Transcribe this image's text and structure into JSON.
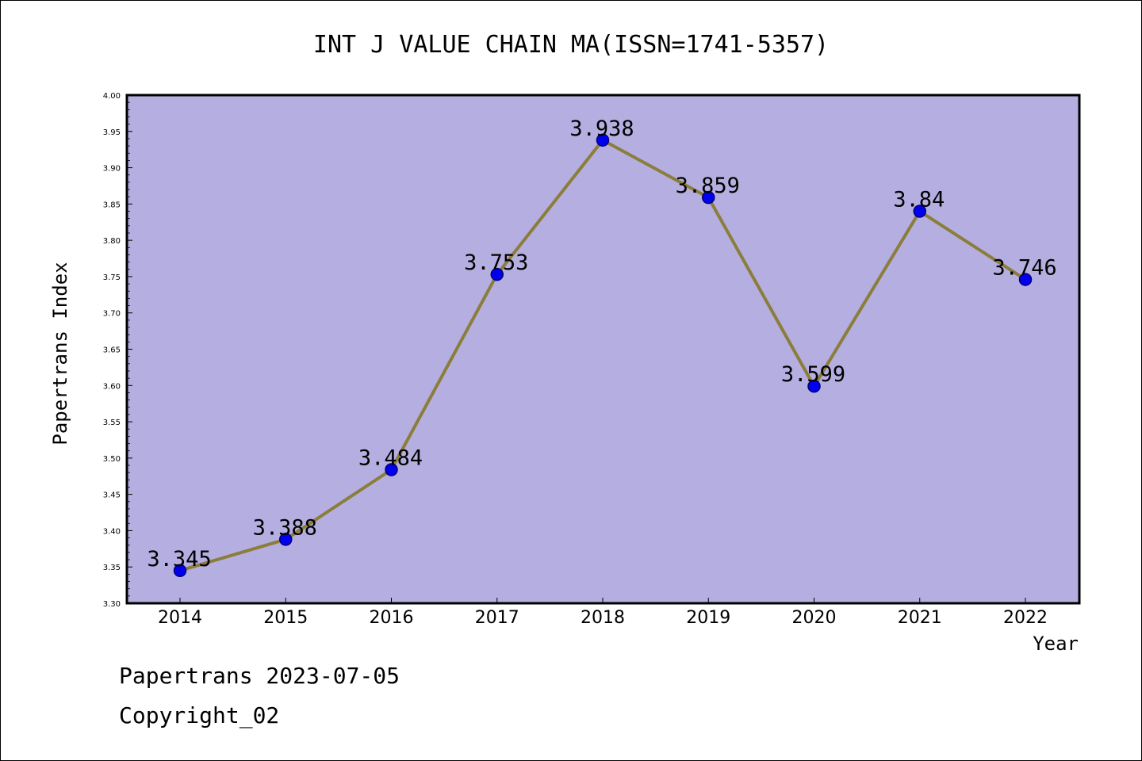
{
  "chart_data": {
    "type": "line",
    "title": "INT J VALUE CHAIN MA(ISSN=1741-5357)",
    "xlabel": "Year",
    "ylabel": "Papertrans Index",
    "categories": [
      "2014",
      "2015",
      "2016",
      "2017",
      "2018",
      "2019",
      "2020",
      "2021",
      "2022"
    ],
    "values": [
      3.345,
      3.388,
      3.484,
      3.753,
      3.938,
      3.859,
      3.599,
      3.84,
      3.746
    ],
    "data_labels": [
      "3.345",
      "3.388",
      "3.484",
      "3.753",
      "3.938",
      "3.859",
      "3.599",
      "3.84",
      "3.746"
    ],
    "ylim": [
      3.3,
      4.0
    ],
    "y_ticks": [
      "3.30",
      "3.35",
      "3.40",
      "3.45",
      "3.50",
      "3.55",
      "3.60",
      "3.65",
      "3.70",
      "3.75",
      "3.80",
      "3.85",
      "3.90",
      "3.95",
      "4.00"
    ],
    "grid": false,
    "legend": "none",
    "colors": {
      "plot_background": "#b5aee1",
      "line": "#8b7d3a",
      "marker": "#0000ee"
    }
  },
  "footer": {
    "line1": "Papertrans 2023-07-05",
    "line2": "Copyright_02"
  }
}
